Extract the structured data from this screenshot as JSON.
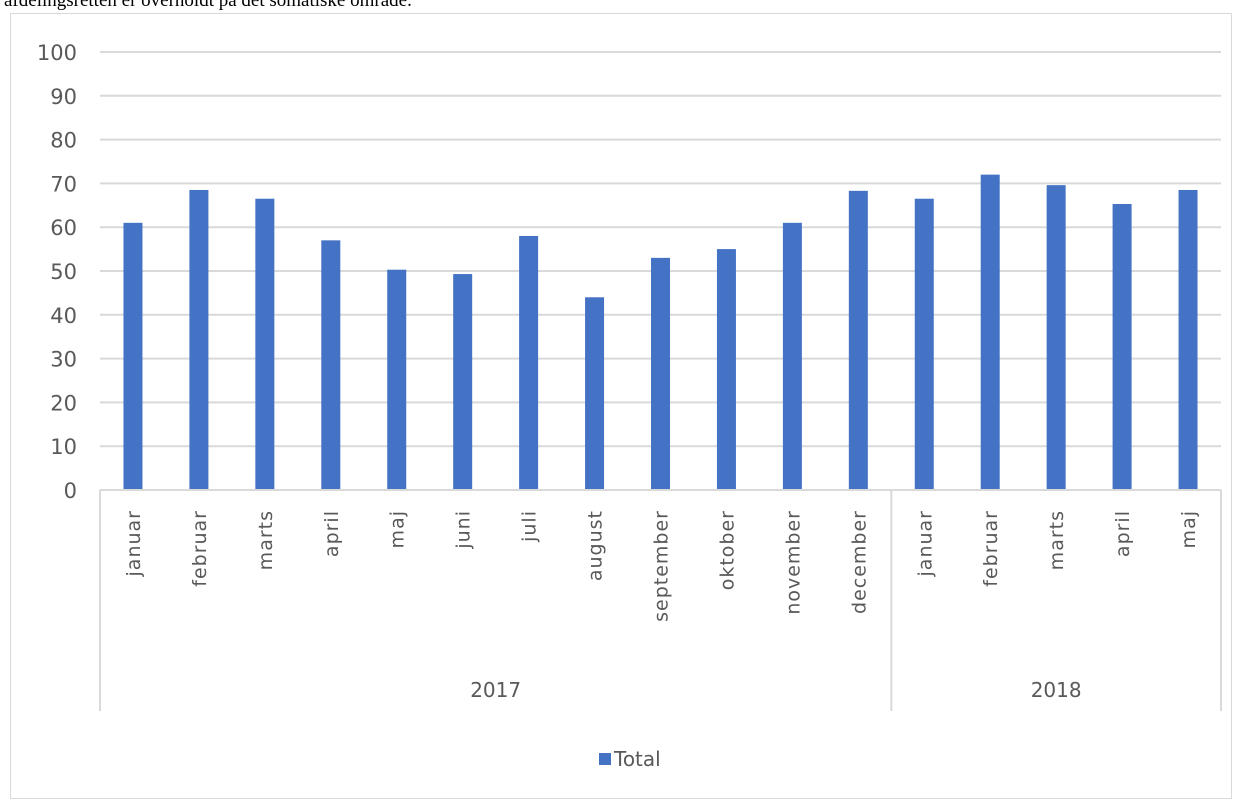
{
  "page": {
    "top_text": "afdelingsretten er overholdt på det somatiske område."
  },
  "chart_data": {
    "type": "bar",
    "categories": [
      "januar",
      "februar",
      "marts",
      "april",
      "maj",
      "juni",
      "juli",
      "august",
      "september",
      "oktober",
      "november",
      "december",
      "januar",
      "februar",
      "marts",
      "april",
      "maj"
    ],
    "groups": [
      {
        "label": "2017",
        "count": 12
      },
      {
        "label": "2018",
        "count": 5
      }
    ],
    "series": [
      {
        "name": "Total",
        "color": "#4472c4",
        "values": [
          61,
          68.5,
          66.5,
          57,
          50.3,
          49.3,
          58,
          44,
          53,
          55,
          61,
          68.3,
          66.5,
          72,
          69.6,
          65.3,
          68.5
        ]
      }
    ],
    "ylim": [
      0,
      100
    ],
    "yticks": [
      0,
      10,
      20,
      30,
      40,
      50,
      60,
      70,
      80,
      90,
      100
    ],
    "grid": true,
    "legend_position": "bottom"
  }
}
